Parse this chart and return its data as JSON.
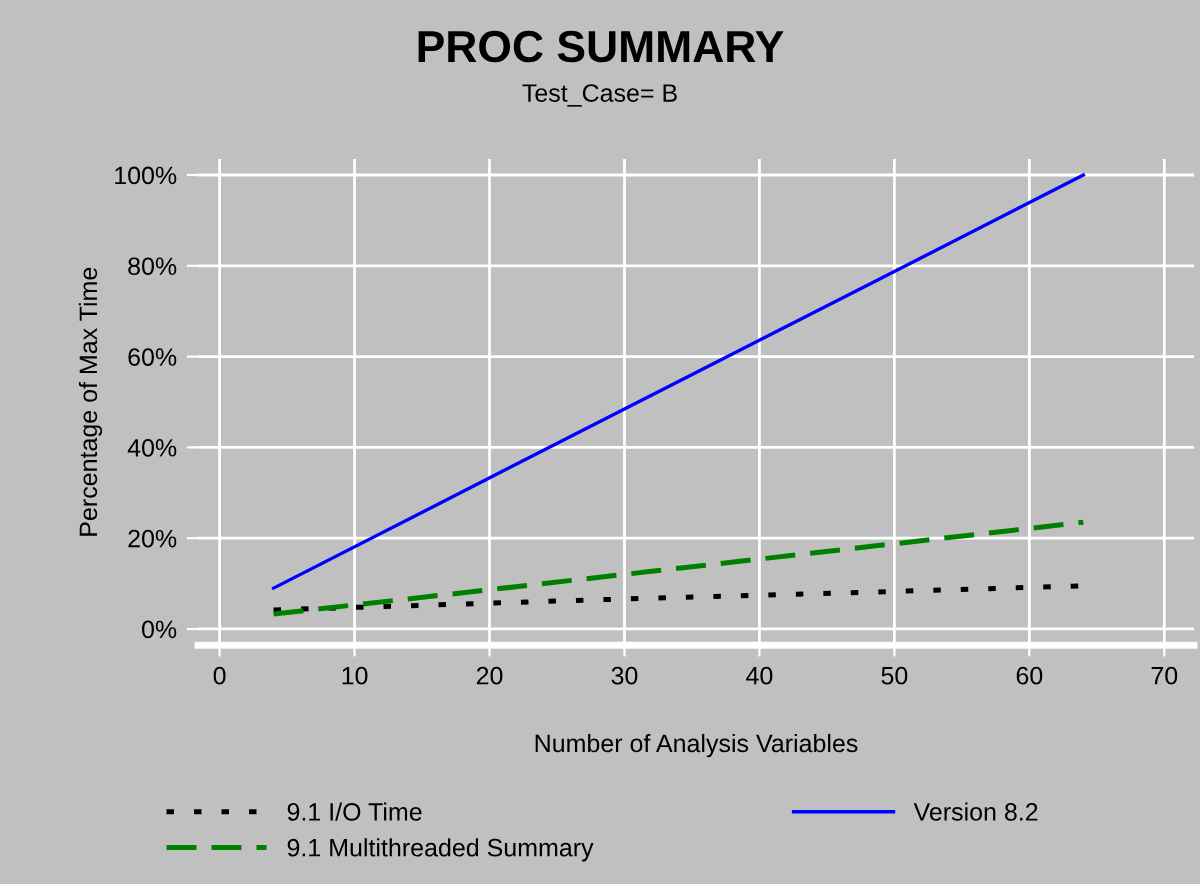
{
  "chart_data": {
    "type": "line",
    "title": "PROC SUMMARY",
    "subtitle": "Test_Case= B",
    "xlabel": "Number of Analysis Variables",
    "ylabel": "Percentage of Max Time",
    "xlim": [
      -1.6,
      72.2
    ],
    "xticks": [
      0,
      10,
      20,
      30,
      40,
      50,
      60,
      70
    ],
    "ylim": [
      -3.6,
      103.5
    ],
    "yticks": [
      {
        "value": 0,
        "label": "0%"
      },
      {
        "value": 20,
        "label": "20%"
      },
      {
        "value": 40,
        "label": "40%"
      },
      {
        "value": 60,
        "label": "60%"
      },
      {
        "value": 80,
        "label": "80%"
      },
      {
        "value": 100,
        "label": "100%"
      }
    ],
    "grid": true,
    "legend": "bottom",
    "series": [
      {
        "name": "9.1 I/O Time",
        "color": "#000000",
        "line_style": "dotted",
        "x": [
          4,
          16,
          32,
          48,
          64
        ],
        "values": [
          4.2,
          5.3,
          6.8,
          8.1,
          9.5
        ]
      },
      {
        "name": "9.1 Multithreaded Summary",
        "color": "#008000",
        "line_style": "dashed",
        "x": [
          4,
          16,
          32,
          48,
          64
        ],
        "values": [
          3.3,
          7.3,
          12.7,
          18.1,
          23.5
        ]
      },
      {
        "name": "Version 8.2",
        "color": "#0000ff",
        "line_style": "solid",
        "x": [
          4,
          16,
          32,
          48,
          64
        ],
        "values": [
          9,
          27.2,
          51.5,
          75.7,
          100
        ]
      }
    ]
  }
}
